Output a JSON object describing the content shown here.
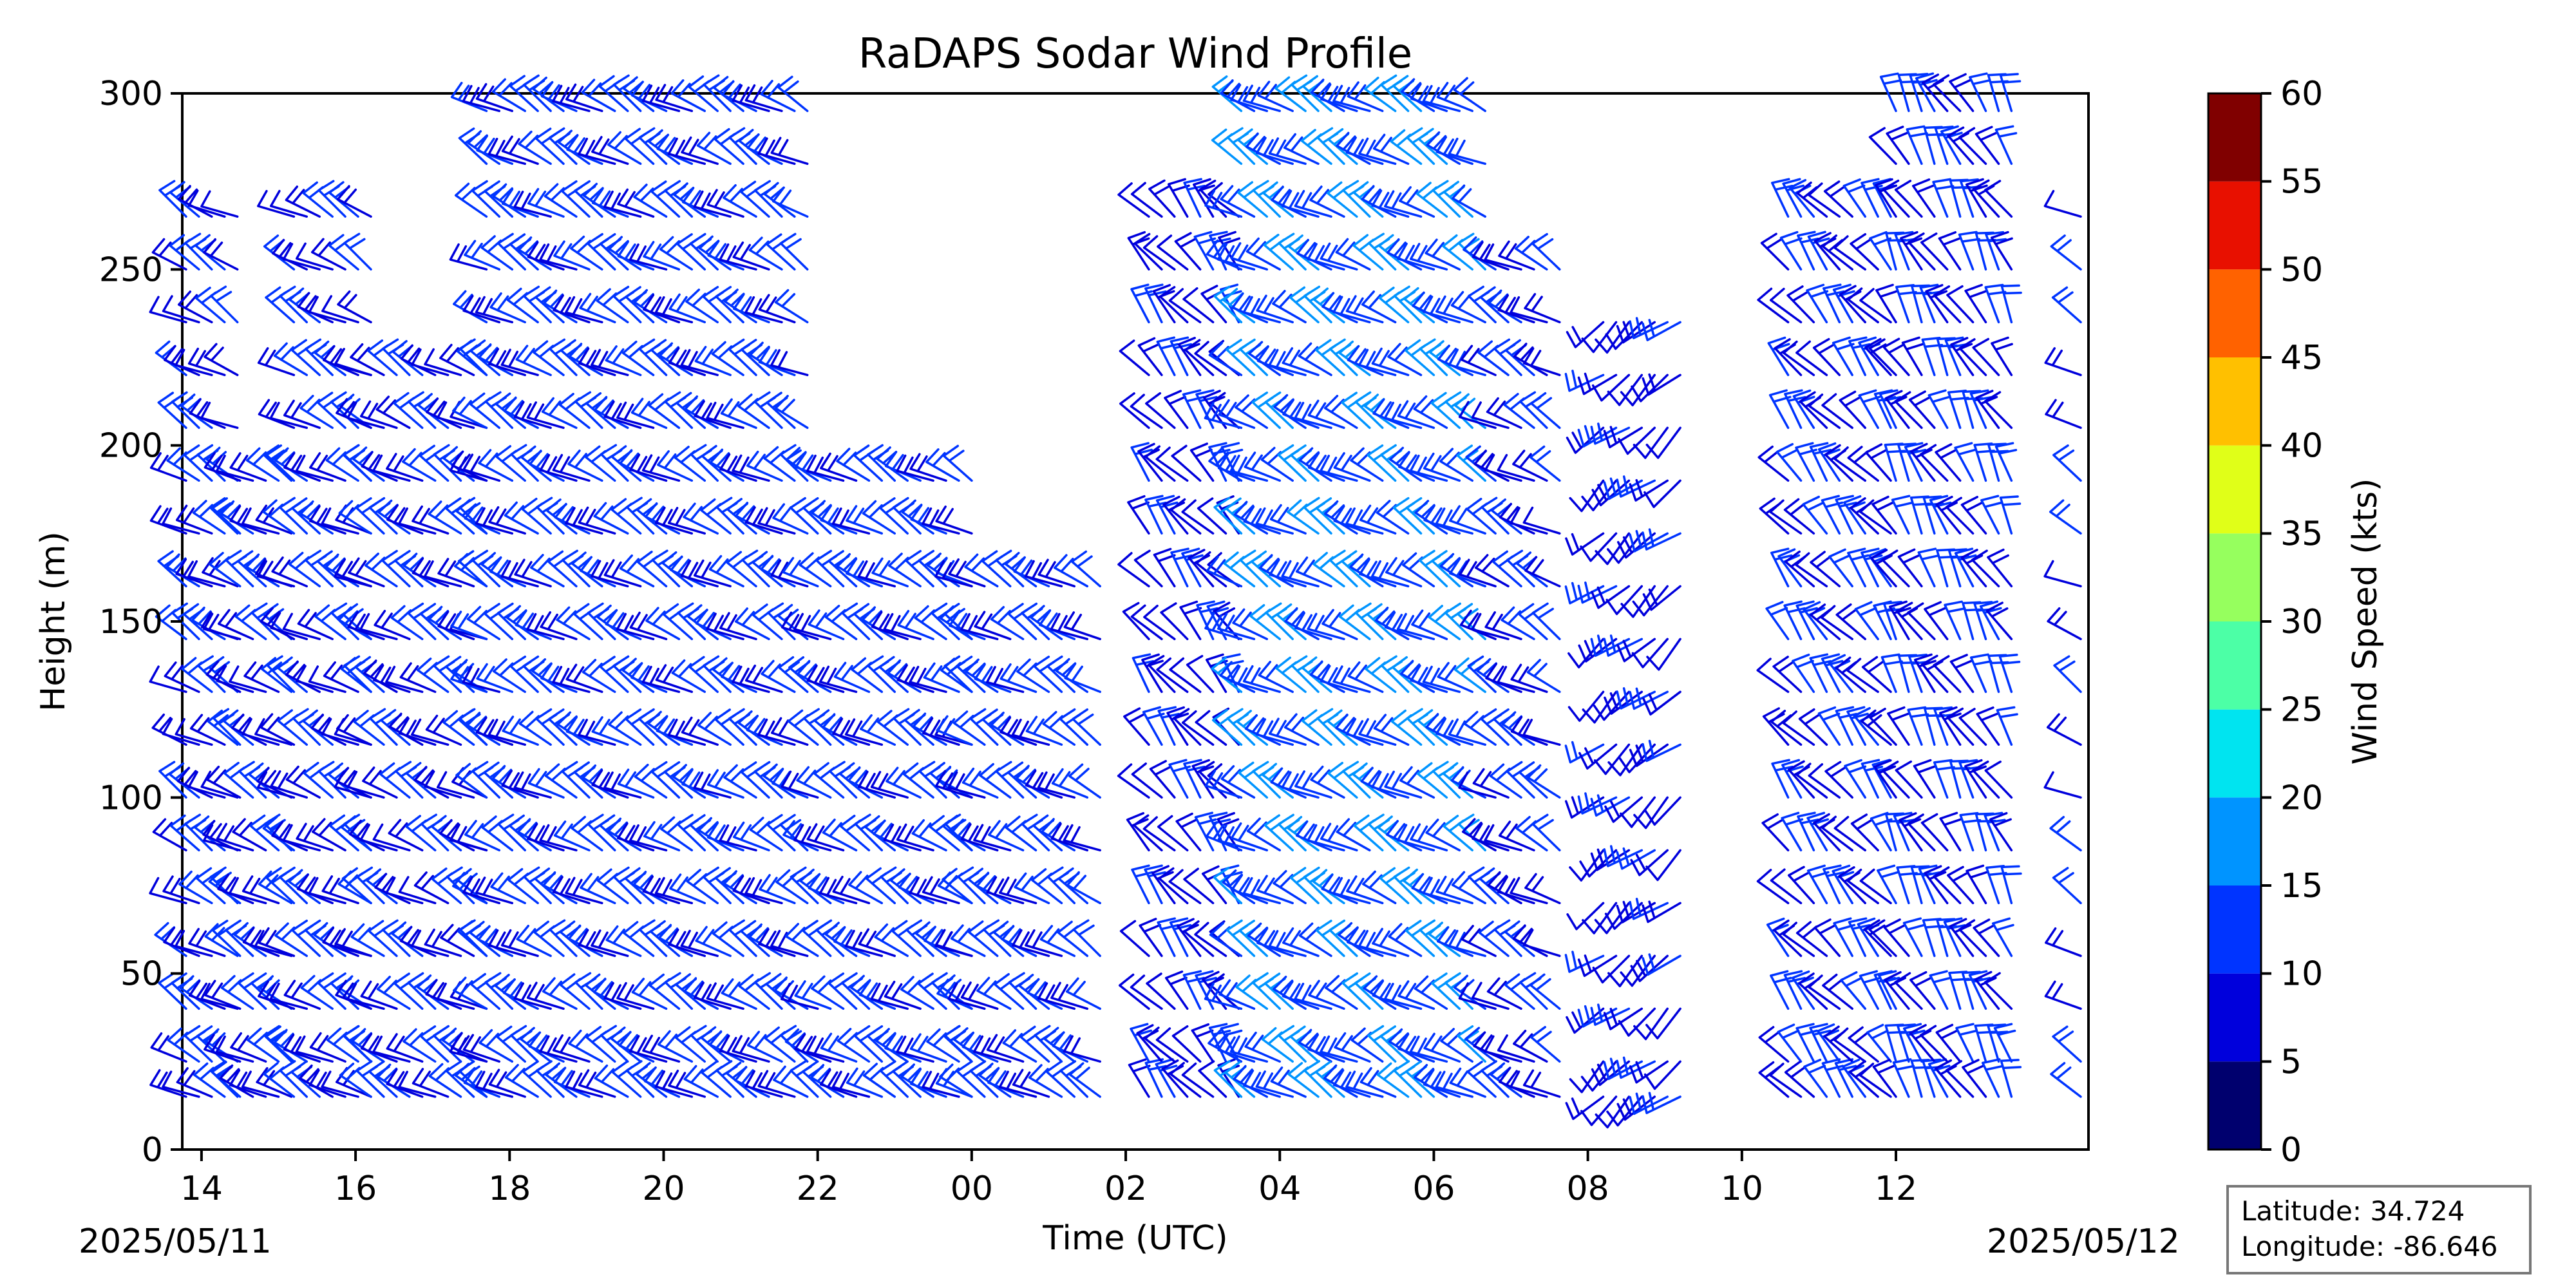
{
  "chart_data": {
    "type": "wind-barb",
    "title": "RaDAPS Sodar Wind Profile",
    "xlabel": "Time (UTC)",
    "ylabel": "Height (m)",
    "xlim_hours": [
      13.75,
      38.5
    ],
    "ylim": [
      0,
      300
    ],
    "x_ticks": [
      {
        "hour": 14,
        "label": "14"
      },
      {
        "hour": 16,
        "label": "16"
      },
      {
        "hour": 18,
        "label": "18"
      },
      {
        "hour": 20,
        "label": "20"
      },
      {
        "hour": 22,
        "label": "22"
      },
      {
        "hour": 24,
        "label": "00"
      },
      {
        "hour": 26,
        "label": "02"
      },
      {
        "hour": 28,
        "label": "04"
      },
      {
        "hour": 30,
        "label": "06"
      },
      {
        "hour": 32,
        "label": "08"
      },
      {
        "hour": 34,
        "label": "10"
      },
      {
        "hour": 36,
        "label": "12"
      }
    ],
    "y_ticks": [
      0,
      50,
      100,
      150,
      200,
      250,
      300
    ],
    "date_left": "2025/05/11",
    "date_right": "2025/05/12",
    "heights_m": [
      15,
      25,
      40,
      55,
      70,
      85,
      100,
      115,
      130,
      145,
      160,
      175,
      190,
      205,
      220,
      235,
      250,
      265,
      280,
      295
    ],
    "time_step_minutes": 10,
    "segments": [
      {
        "start_hour": 13.8,
        "end_hour": 14.5,
        "max_height": 265,
        "direction_deg": 300,
        "speed_kts": 10
      },
      {
        "start_hour": 14.5,
        "end_hour": 15.2,
        "max_height": 190,
        "direction_deg": 300,
        "speed_kts": 10
      },
      {
        "start_hour": 15.2,
        "end_hour": 16.2,
        "max_height": 265,
        "direction_deg": 300,
        "speed_kts": 10
      },
      {
        "start_hour": 16.2,
        "end_hour": 17.7,
        "max_height": 220,
        "direction_deg": 300,
        "speed_kts": 10
      },
      {
        "start_hour": 17.7,
        "end_hour": 22.0,
        "max_height": 300,
        "direction_deg": 300,
        "speed_kts": 12
      },
      {
        "start_hour": 22.0,
        "end_hour": 24.0,
        "max_height": 190,
        "direction_deg": 300,
        "speed_kts": 12
      },
      {
        "start_hour": 24.0,
        "end_hour": 25.8,
        "max_height": 160,
        "direction_deg": 300,
        "speed_kts": 12
      },
      {
        "start_hour": 26.3,
        "end_hour": 27.5,
        "max_height": 265,
        "direction_deg": 320,
        "speed_kts": 8
      },
      {
        "start_hour": 27.5,
        "end_hour": 30.8,
        "max_height": 300,
        "direction_deg": 300,
        "speed_kts": 14
      },
      {
        "start_hour": 30.8,
        "end_hour": 31.7,
        "max_height": 250,
        "direction_deg": 300,
        "speed_kts": 10
      },
      {
        "start_hour": 32.2,
        "end_hour": 33.2,
        "max_height": 235,
        "direction_deg": 230,
        "speed_kts": 8
      },
      {
        "start_hour": 34.6,
        "end_hour": 36.0,
        "max_height": 265,
        "direction_deg": 320,
        "speed_kts": 10
      },
      {
        "start_hour": 36.0,
        "end_hour": 37.5,
        "max_height": 295,
        "direction_deg": 330,
        "speed_kts": 10
      },
      {
        "start_hour": 38.4,
        "end_hour": 38.5,
        "max_height": 265,
        "direction_deg": 300,
        "speed_kts": 10
      }
    ],
    "colorbar": {
      "label": "Wind Speed (kts)",
      "ticks": [
        0,
        5,
        10,
        15,
        20,
        25,
        30,
        35,
        40,
        45,
        50,
        55,
        60
      ],
      "colors": [
        "#00006e",
        "#0000dc",
        "#0034ff",
        "#0094ff",
        "#00e4f0",
        "#4cffa6",
        "#96ff5e",
        "#e0ff18",
        "#ffc000",
        "#ff6200",
        "#e81000",
        "#800000"
      ]
    }
  },
  "info_box": {
    "latitude_text": "Latitude: 34.724",
    "longitude_text": "Longitude: -86.646"
  }
}
